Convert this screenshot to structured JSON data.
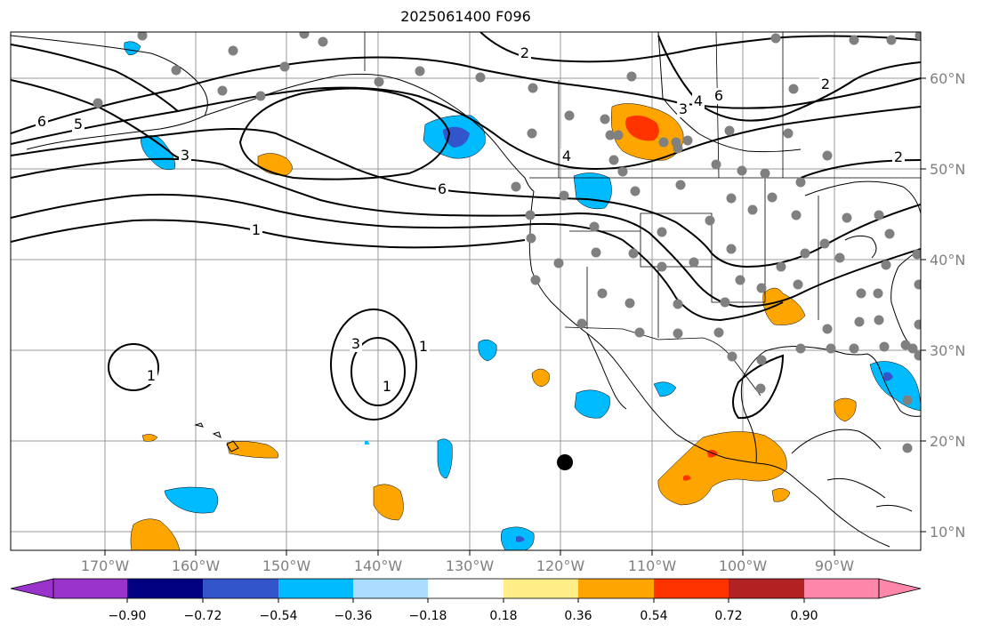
{
  "title": "2025061400 F096",
  "map": {
    "lon_range": [
      -180,
      -80
    ],
    "lat_range": [
      8,
      65
    ],
    "grid": true,
    "lon_ticks": [
      "170°W",
      "160°W",
      "150°W",
      "140°W",
      "130°W",
      "120°W",
      "110°W",
      "100°W",
      "90°W"
    ],
    "lat_ticks": [
      "10°N",
      "20°N",
      "30°N",
      "40°N",
      "50°N",
      "60°N"
    ],
    "contour_labels": [
      "6",
      "5",
      "3",
      "2",
      "1",
      "6",
      "4",
      "3",
      "4",
      "6",
      "2",
      "2",
      "3",
      "1",
      "1",
      "1"
    ],
    "marker_label": ""
  },
  "colorbar": {
    "tick_labels": [
      "−0.90",
      "−0.72",
      "−0.54",
      "−0.36",
      "−0.18",
      "0.18",
      "0.36",
      "0.54",
      "0.72",
      "0.90"
    ],
    "colors": [
      "#9933cc",
      "#000080",
      "#3355cc",
      "#00bbff",
      "#aaddff",
      "#ffffff",
      "#ffee88",
      "#ffa500",
      "#ff3300",
      "#b22222",
      "#ff88aa"
    ]
  }
}
